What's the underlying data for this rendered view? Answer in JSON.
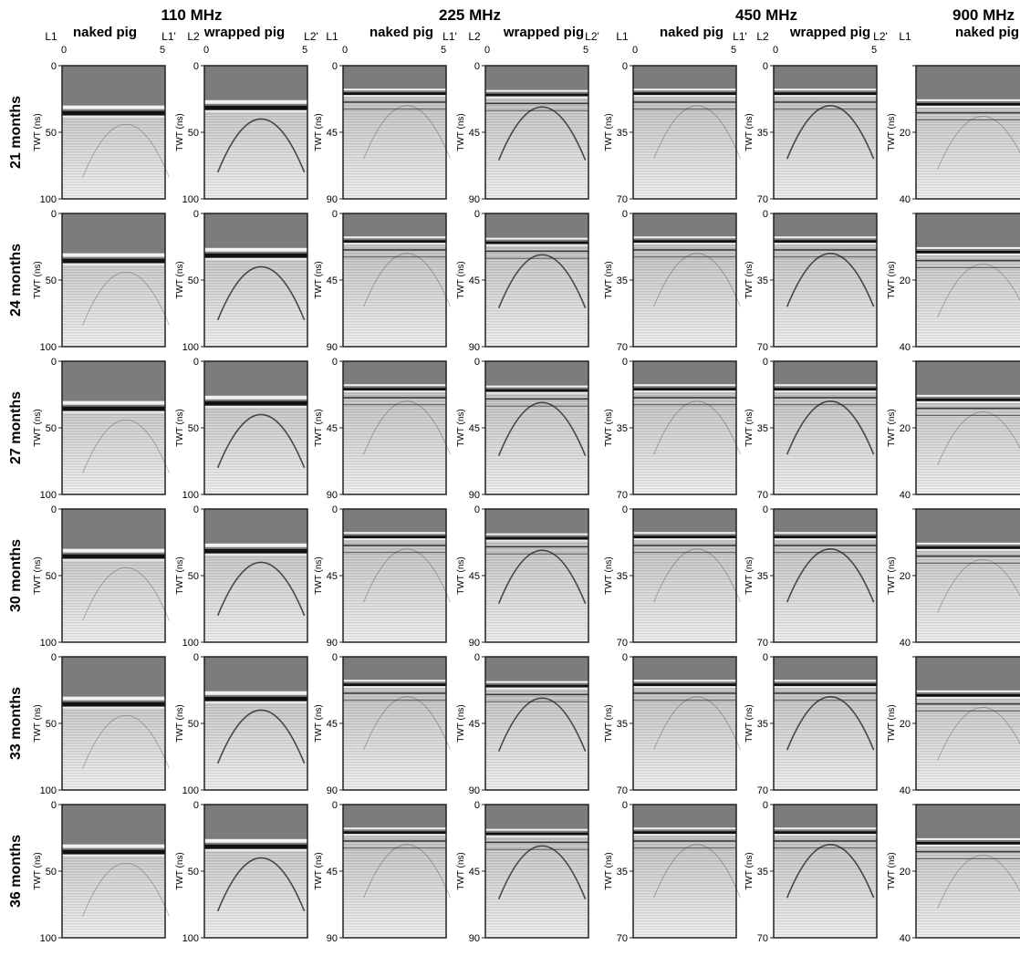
{
  "figure": {
    "frequencies": [
      {
        "label": "110 MHz",
        "panels": [
          {
            "condition": "naked pig",
            "line_start": "L1",
            "line_end": "L1'",
            "x_ticks": [
              "0",
              "5"
            ]
          },
          {
            "condition": "wrapped pig",
            "line_start": "L2",
            "line_end": "L2'",
            "x_ticks": [
              "0",
              "5"
            ]
          }
        ],
        "y_ticks": [
          "0",
          "50",
          "100"
        ]
      },
      {
        "label": "225 MHz",
        "panels": [
          {
            "condition": "naked pig",
            "line_start": "L1",
            "line_end": "L1'",
            "x_ticks": [
              "0",
              "5"
            ]
          },
          {
            "condition": "wrapped pig",
            "line_start": "L2",
            "line_end": "L2'",
            "x_ticks": [
              "0",
              "5"
            ]
          }
        ],
        "y_ticks": [
          "0",
          "45",
          "90"
        ]
      },
      {
        "label": "450 MHz",
        "panels": [
          {
            "condition": "naked pig",
            "line_start": "L1",
            "line_end": "L1'",
            "x_ticks": [
              "0",
              "5"
            ]
          },
          {
            "condition": "wrapped pig",
            "line_start": "L2",
            "line_end": "L2'",
            "x_ticks": [
              "0",
              "5"
            ]
          }
        ],
        "y_ticks": [
          "0",
          "35",
          "70"
        ]
      },
      {
        "label": "900 MHz",
        "panels": [
          {
            "condition": "naked pig",
            "line_start": "L1",
            "line_end": "",
            "x_ticks": []
          }
        ],
        "y_ticks": [
          "",
          "20",
          "40"
        ]
      }
    ],
    "rows": [
      "21 months",
      "24 months",
      "27 months",
      "30 months",
      "33 months",
      "36 months"
    ],
    "y_axis_label": "TWT (ns)",
    "colors": {
      "radargram_air": "#7c7c7c",
      "radargram_bg": "#cfcfcf",
      "reflector": "#111111",
      "axis": "#222222"
    }
  }
}
